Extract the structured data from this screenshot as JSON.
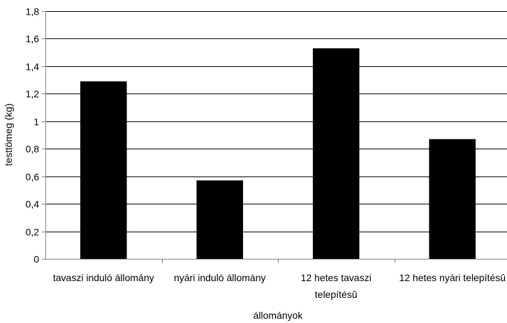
{
  "chart_data": {
    "type": "bar",
    "title": "",
    "xlabel": "állományok",
    "ylabel": "testtömeg (kg)",
    "categories": [
      [
        "tavaszi induló állomány"
      ],
      [
        "nyári induló állomány"
      ],
      [
        "12 hetes tavaszi",
        "telepítésû"
      ],
      [
        "12 hetes nyári telepítésû"
      ]
    ],
    "values": [
      1.29,
      0.57,
      1.53,
      0.87
    ],
    "ylim": [
      0,
      1.8
    ],
    "yticks": [
      0,
      0.2,
      0.4,
      0.6,
      0.8,
      1,
      1.2,
      1.4,
      1.6,
      1.8
    ],
    "ytick_labels": [
      "0",
      "0,2",
      "0,4",
      "0,6",
      "0,8",
      "1",
      "1,2",
      "1,4",
      "1,6",
      "1,8"
    ],
    "grid": true,
    "bar_color": "#000000",
    "grid_color": "#000000",
    "axis_color": "#808080"
  }
}
